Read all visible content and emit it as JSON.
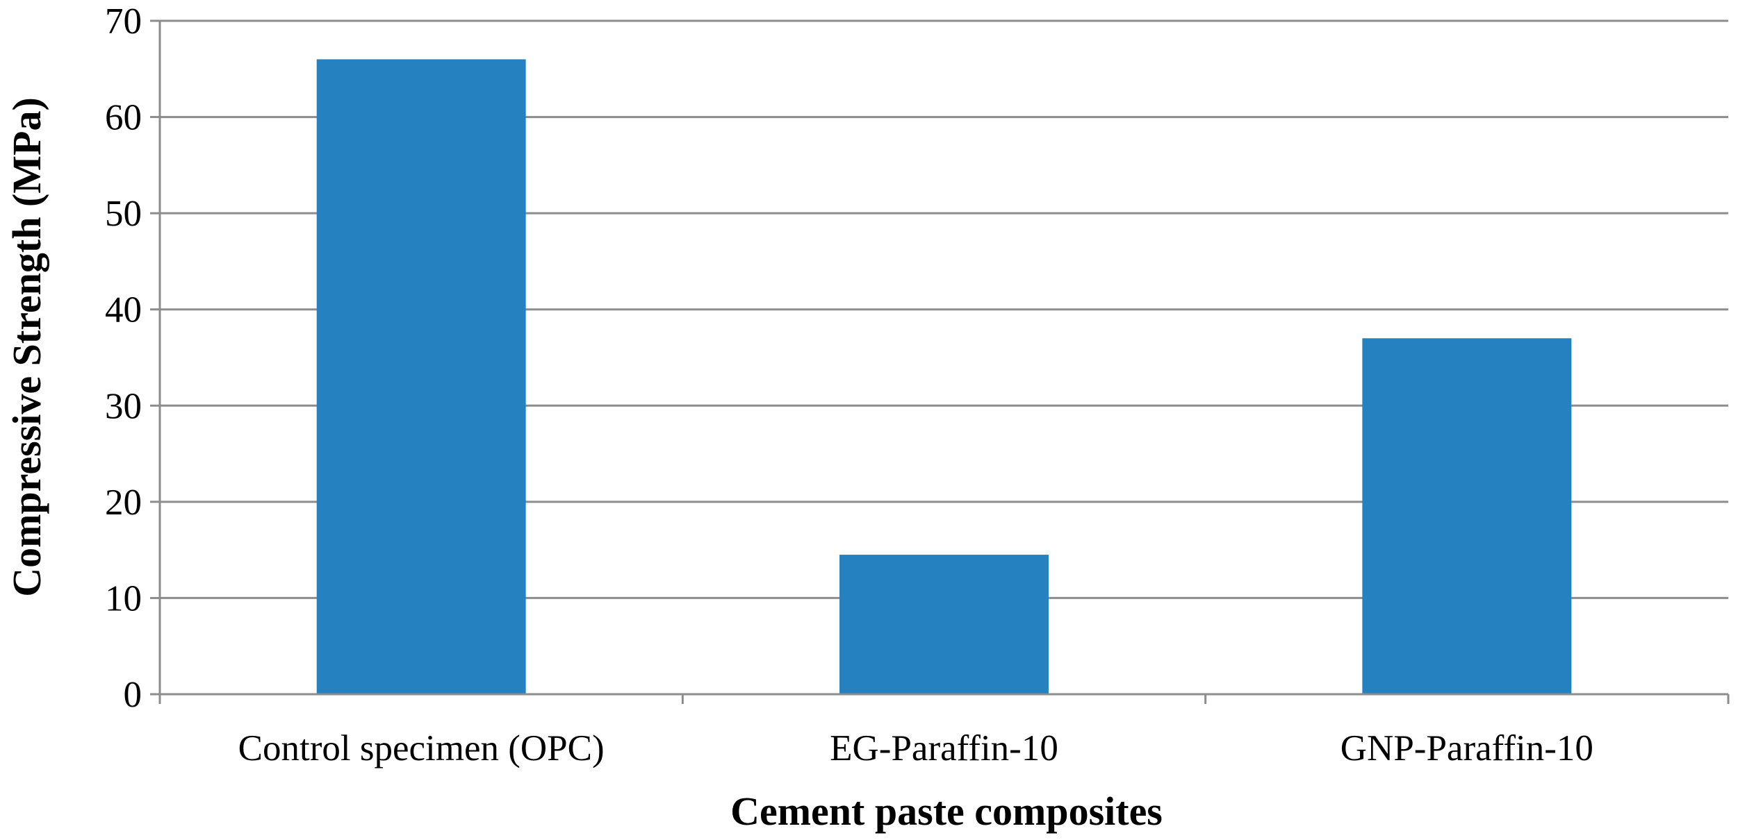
{
  "chart_data": {
    "type": "bar",
    "categories": [
      "Control specimen (OPC)",
      "EG-Paraffin-10",
      "GNP-Paraffin-10"
    ],
    "values": [
      66,
      14.5,
      37
    ],
    "ylabel": "Compressive Strength (MPa)",
    "xlabel": "Cement paste composites",
    "ylim": [
      0,
      70
    ],
    "yticks": [
      0,
      10,
      20,
      30,
      40,
      50,
      60,
      70
    ],
    "grid": true,
    "legend": "none",
    "bar_color": "#2581C0",
    "grid_color": "#8C8C8C",
    "axis_color": "#8C8C8C"
  }
}
